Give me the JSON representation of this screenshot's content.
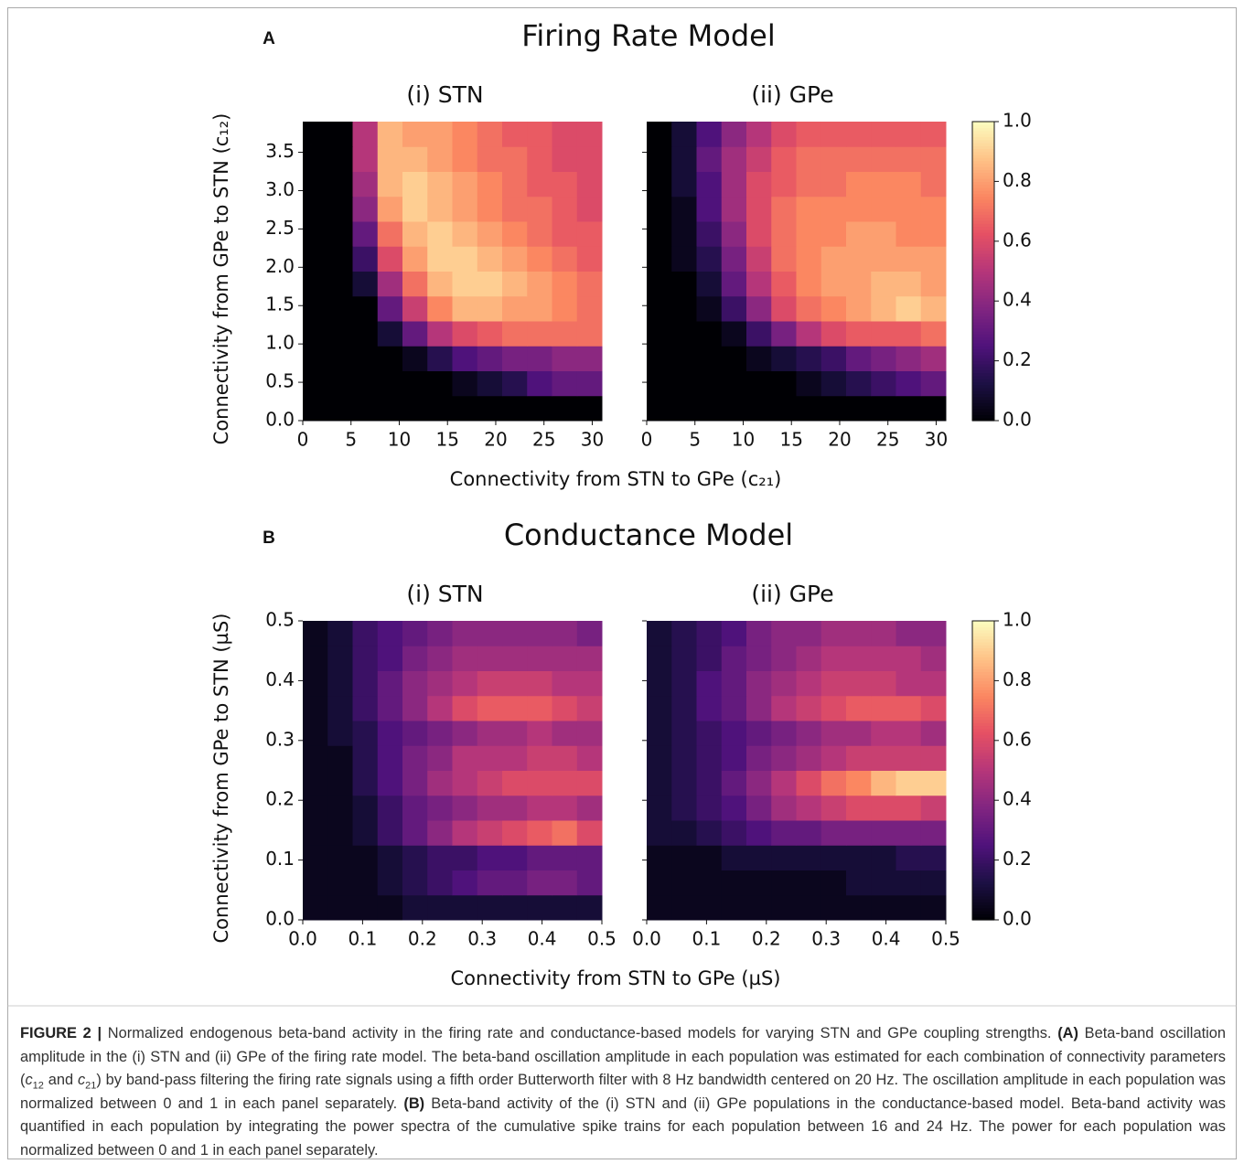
{
  "figure": {
    "panels": [
      {
        "letter": "A",
        "title": "Firing Rate Model",
        "x_label": "Connectivity from STN to GPe (c₂₁)",
        "y_label": "Connectivity from GPe to STN (c₁₂)"
      },
      {
        "letter": "B",
        "title": "Conductance Model",
        "x_label": "Connectivity from STN to GPe (µS)",
        "y_label": "Connectivity from GPe to STN (µS)"
      }
    ],
    "caption": [
      {
        "text": "FIGURE 2 |",
        "format": "bold"
      },
      {
        "text": " Normalized endogenous beta-band activity in the firing rate and conductance-based models for varying STN and GPe coupling strengths. "
      },
      {
        "text": "(A)",
        "format": "bold"
      },
      {
        "text": " Beta-band oscillation amplitude in the (i) STN and (ii) GPe of the firing rate model. The beta-band oscillation amplitude in each population was estimated for each combination of connectivity parameters ("
      },
      {
        "text": "c",
        "format": "italic"
      },
      {
        "text": "12",
        "format": "sub"
      },
      {
        "text": " and "
      },
      {
        "text": "c",
        "format": "italic"
      },
      {
        "text": "21",
        "format": "sub"
      },
      {
        "text": ") by band-pass filtering the firing rate signals using a fifth order Butterworth filter with 8 Hz bandwidth centered on 20 Hz. The oscillation amplitude in each population was normalized between 0 and 1 in each panel separately. "
      },
      {
        "text": "(B)",
        "format": "bold"
      },
      {
        "text": " Beta-band activity of the (i) STN and (ii) GPe populations in the conductance-based model. Beta-band activity was quantified in each population by integrating the power spectra of the cumulative spike trains for each population between 16 and 24 Hz. The power for each population was normalized between 0 and 1 in each panel separately."
      }
    ]
  },
  "chart_data": [
    {
      "type": "heatmap",
      "title": "(i) STN",
      "colormap": "magma",
      "clim": [
        0,
        1
      ],
      "xlim": [
        0,
        31
      ],
      "ylim": [
        0,
        3.9
      ],
      "xticks": [
        0,
        5,
        10,
        15,
        20,
        25,
        30
      ],
      "yticks": [
        {
          "value": 0,
          "label": "0.0"
        },
        0.5,
        {
          "value": 1,
          "label": "1.0"
        },
        1.5,
        {
          "value": 2,
          "label": "2.0"
        },
        2.5,
        {
          "value": 3,
          "label": "3.0"
        },
        3.5
      ],
      "values": [
        [
          0,
          0,
          0,
          0,
          0,
          0,
          0,
          0,
          0,
          0,
          0,
          0
        ],
        [
          0,
          0,
          0,
          0,
          0,
          0,
          0.05,
          0.1,
          0.15,
          0.25,
          0.3,
          0.3
        ],
        [
          0,
          0,
          0,
          0,
          0.05,
          0.15,
          0.25,
          0.3,
          0.35,
          0.35,
          0.4,
          0.4
        ],
        [
          0,
          0,
          0,
          0.1,
          0.3,
          0.5,
          0.6,
          0.65,
          0.7,
          0.7,
          0.7,
          0.7
        ],
        [
          0,
          0,
          0,
          0.3,
          0.55,
          0.75,
          0.85,
          0.85,
          0.8,
          0.8,
          0.75,
          0.7
        ],
        [
          0,
          0,
          0.1,
          0.45,
          0.7,
          0.85,
          0.9,
          0.9,
          0.85,
          0.8,
          0.75,
          0.7
        ],
        [
          0,
          0,
          0.2,
          0.6,
          0.8,
          0.9,
          0.9,
          0.85,
          0.8,
          0.75,
          0.7,
          0.65
        ],
        [
          0,
          0,
          0.3,
          0.7,
          0.85,
          0.9,
          0.85,
          0.8,
          0.75,
          0.7,
          0.65,
          0.65
        ],
        [
          0,
          0,
          0.4,
          0.8,
          0.9,
          0.85,
          0.8,
          0.75,
          0.7,
          0.7,
          0.65,
          0.6
        ],
        [
          0,
          0,
          0.45,
          0.85,
          0.9,
          0.85,
          0.8,
          0.75,
          0.7,
          0.65,
          0.65,
          0.6
        ],
        [
          0,
          0,
          0.5,
          0.85,
          0.85,
          0.8,
          0.75,
          0.7,
          0.7,
          0.65,
          0.6,
          0.6
        ],
        [
          0,
          0,
          0.5,
          0.85,
          0.8,
          0.8,
          0.75,
          0.7,
          0.65,
          0.65,
          0.6,
          0.6
        ]
      ]
    },
    {
      "type": "heatmap",
      "title": "(ii) GPe",
      "colormap": "magma",
      "clim": [
        0,
        1
      ],
      "xlim": [
        0,
        31
      ],
      "ylim": [
        0,
        3.9
      ],
      "xticks": [
        0,
        5,
        10,
        15,
        20,
        25,
        30
      ],
      "yticks": [
        0,
        0.5,
        1,
        1.5,
        2,
        2.5,
        3,
        3.5
      ],
      "colorbar_ticks": [
        {
          "value": 0,
          "label": "0.0"
        },
        0.2,
        0.4,
        0.6,
        0.8,
        {
          "value": 1,
          "label": "1.0"
        }
      ],
      "values": [
        [
          0,
          0,
          0,
          0,
          0,
          0,
          0,
          0,
          0,
          0,
          0,
          0
        ],
        [
          0,
          0,
          0,
          0,
          0,
          0,
          0.05,
          0.1,
          0.15,
          0.2,
          0.25,
          0.3
        ],
        [
          0,
          0,
          0,
          0,
          0.05,
          0.1,
          0.15,
          0.2,
          0.3,
          0.35,
          0.4,
          0.45
        ],
        [
          0,
          0,
          0,
          0.05,
          0.2,
          0.35,
          0.5,
          0.6,
          0.65,
          0.65,
          0.65,
          0.7
        ],
        [
          0,
          0,
          0.05,
          0.2,
          0.4,
          0.6,
          0.7,
          0.75,
          0.8,
          0.85,
          0.9,
          0.85
        ],
        [
          0,
          0,
          0.1,
          0.3,
          0.5,
          0.65,
          0.75,
          0.8,
          0.8,
          0.85,
          0.85,
          0.8
        ],
        [
          0,
          0.05,
          0.15,
          0.35,
          0.55,
          0.7,
          0.75,
          0.8,
          0.8,
          0.8,
          0.8,
          0.8
        ],
        [
          0,
          0.05,
          0.2,
          0.4,
          0.6,
          0.7,
          0.75,
          0.75,
          0.8,
          0.8,
          0.75,
          0.75
        ],
        [
          0,
          0.05,
          0.25,
          0.45,
          0.6,
          0.7,
          0.75,
          0.75,
          0.75,
          0.75,
          0.75,
          0.75
        ],
        [
          0,
          0.1,
          0.25,
          0.45,
          0.6,
          0.65,
          0.7,
          0.7,
          0.75,
          0.75,
          0.75,
          0.7
        ],
        [
          0,
          0.1,
          0.3,
          0.45,
          0.55,
          0.65,
          0.7,
          0.7,
          0.7,
          0.7,
          0.7,
          0.7
        ],
        [
          0,
          0.1,
          0.25,
          0.4,
          0.5,
          0.6,
          0.65,
          0.65,
          0.65,
          0.65,
          0.65,
          0.65
        ]
      ]
    },
    {
      "type": "heatmap",
      "title": "(i) STN",
      "colormap": "magma",
      "clim": [
        0,
        1
      ],
      "xlim": [
        0,
        0.5
      ],
      "ylim": [
        0,
        0.5
      ],
      "xticks": [
        {
          "value": 0,
          "label": "0.0"
        },
        0.1,
        0.2,
        0.3,
        0.4,
        0.5
      ],
      "yticks": [
        {
          "value": 0,
          "label": "0.0"
        },
        0.1,
        0.2,
        0.3,
        0.4,
        0.5
      ],
      "values": [
        [
          0.05,
          0.05,
          0.05,
          0.05,
          0.1,
          0.1,
          0.1,
          0.1,
          0.1,
          0.1,
          0.1,
          0.1
        ],
        [
          0.05,
          0.05,
          0.05,
          0.1,
          0.15,
          0.2,
          0.25,
          0.3,
          0.3,
          0.35,
          0.35,
          0.3
        ],
        [
          0.05,
          0.05,
          0.05,
          0.1,
          0.15,
          0.2,
          0.2,
          0.25,
          0.25,
          0.3,
          0.3,
          0.3
        ],
        [
          0.05,
          0.05,
          0.1,
          0.2,
          0.3,
          0.4,
          0.5,
          0.55,
          0.6,
          0.65,
          0.7,
          0.6
        ],
        [
          0.05,
          0.05,
          0.1,
          0.2,
          0.3,
          0.35,
          0.4,
          0.45,
          0.45,
          0.5,
          0.5,
          0.45
        ],
        [
          0.05,
          0.05,
          0.15,
          0.25,
          0.35,
          0.45,
          0.5,
          0.55,
          0.6,
          0.6,
          0.6,
          0.6
        ],
        [
          0.05,
          0.05,
          0.15,
          0.25,
          0.35,
          0.4,
          0.5,
          0.5,
          0.5,
          0.55,
          0.55,
          0.5
        ],
        [
          0.05,
          0.1,
          0.15,
          0.25,
          0.3,
          0.35,
          0.4,
          0.45,
          0.45,
          0.5,
          0.45,
          0.45
        ],
        [
          0.05,
          0.1,
          0.2,
          0.3,
          0.4,
          0.5,
          0.6,
          0.65,
          0.65,
          0.65,
          0.6,
          0.55
        ],
        [
          0.05,
          0.1,
          0.2,
          0.3,
          0.4,
          0.45,
          0.5,
          0.55,
          0.55,
          0.55,
          0.5,
          0.5
        ],
        [
          0.05,
          0.1,
          0.2,
          0.25,
          0.35,
          0.4,
          0.45,
          0.45,
          0.45,
          0.45,
          0.45,
          0.45
        ],
        [
          0.05,
          0.1,
          0.2,
          0.25,
          0.3,
          0.35,
          0.4,
          0.4,
          0.4,
          0.4,
          0.4,
          0.35
        ]
      ]
    },
    {
      "type": "heatmap",
      "title": "(ii) GPe",
      "colormap": "magma",
      "clim": [
        0,
        1
      ],
      "xlim": [
        0,
        0.5
      ],
      "ylim": [
        0,
        0.5
      ],
      "xticks": [
        {
          "value": 0,
          "label": "0.0"
        },
        0.1,
        0.2,
        0.3,
        0.4,
        0.5
      ],
      "yticks": [
        0,
        0.1,
        0.2,
        0.3,
        0.4,
        0.5
      ],
      "colorbar_ticks": [
        {
          "value": 0,
          "label": "0.0"
        },
        0.2,
        0.4,
        0.6,
        0.8,
        {
          "value": 1,
          "label": "1.0"
        }
      ],
      "values": [
        [
          0.05,
          0.05,
          0.05,
          0.05,
          0.05,
          0.05,
          0.05,
          0.05,
          0.05,
          0.05,
          0.05,
          0.05
        ],
        [
          0.05,
          0.05,
          0.05,
          0.05,
          0.05,
          0.05,
          0.05,
          0.05,
          0.1,
          0.1,
          0.1,
          0.1
        ],
        [
          0.05,
          0.05,
          0.05,
          0.1,
          0.1,
          0.1,
          0.1,
          0.1,
          0.1,
          0.1,
          0.15,
          0.15
        ],
        [
          0.1,
          0.1,
          0.15,
          0.2,
          0.25,
          0.3,
          0.3,
          0.35,
          0.35,
          0.35,
          0.35,
          0.35
        ],
        [
          0.1,
          0.15,
          0.2,
          0.25,
          0.35,
          0.45,
          0.5,
          0.55,
          0.6,
          0.6,
          0.6,
          0.55
        ],
        [
          0.1,
          0.15,
          0.2,
          0.3,
          0.4,
          0.5,
          0.6,
          0.7,
          0.75,
          0.85,
          0.9,
          0.9
        ],
        [
          0.1,
          0.15,
          0.2,
          0.25,
          0.35,
          0.4,
          0.45,
          0.5,
          0.55,
          0.55,
          0.55,
          0.55
        ],
        [
          0.1,
          0.15,
          0.2,
          0.25,
          0.3,
          0.35,
          0.4,
          0.45,
          0.45,
          0.5,
          0.5,
          0.45
        ],
        [
          0.1,
          0.15,
          0.25,
          0.3,
          0.4,
          0.5,
          0.55,
          0.6,
          0.65,
          0.65,
          0.65,
          0.6
        ],
        [
          0.1,
          0.15,
          0.25,
          0.3,
          0.4,
          0.45,
          0.5,
          0.55,
          0.55,
          0.55,
          0.5,
          0.5
        ],
        [
          0.1,
          0.15,
          0.2,
          0.3,
          0.35,
          0.4,
          0.45,
          0.5,
          0.5,
          0.5,
          0.5,
          0.45
        ],
        [
          0.1,
          0.15,
          0.2,
          0.25,
          0.35,
          0.4,
          0.4,
          0.45,
          0.45,
          0.45,
          0.4,
          0.4
        ]
      ]
    }
  ]
}
